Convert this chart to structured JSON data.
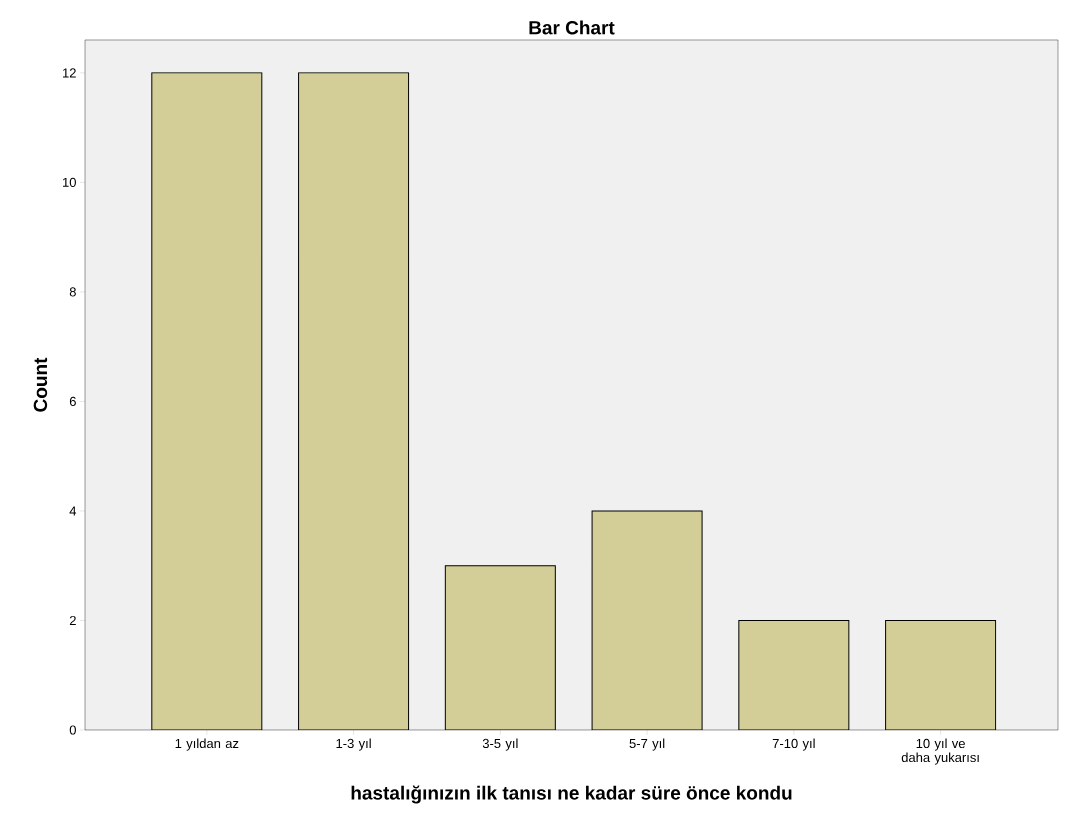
{
  "chart_data": {
    "type": "bar",
    "title": "Bar Chart",
    "xlabel": "hastalığınızın ilk tanısı ne kadar süre önce kondu",
    "ylabel": "Count",
    "categories": [
      "1 yıldan az",
      "1-3 yıl",
      "3-5 yıl",
      "5-7 yıl",
      "7-10 yıl",
      "10 yıl ve daha yukarısı"
    ],
    "values": [
      12,
      12,
      3,
      4,
      2,
      2
    ],
    "color": "#d3ce97",
    "ylim": [
      0,
      12.6
    ],
    "yticks": [
      0,
      2,
      4,
      6,
      8,
      10,
      12
    ],
    "grid": false
  }
}
